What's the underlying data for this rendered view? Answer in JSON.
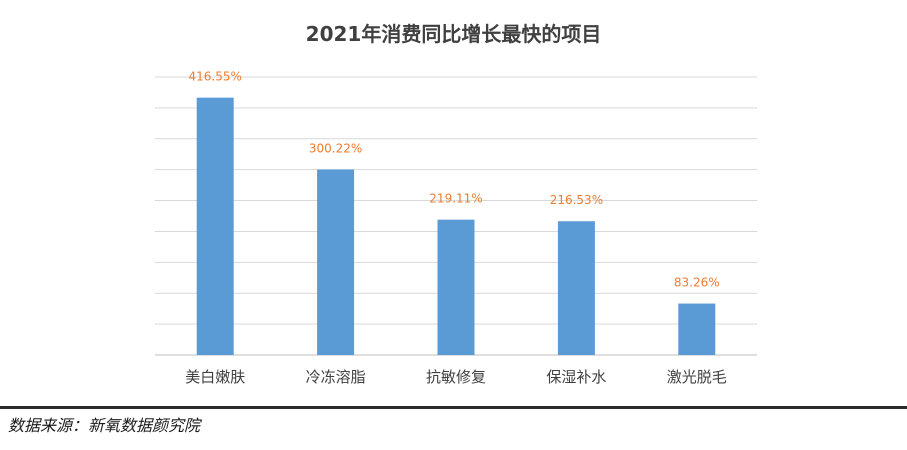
{
  "chart_data": {
    "type": "bar",
    "title": "2021年消费同比增长最快的项目",
    "categories": [
      "美白嫩肤",
      "冷冻溶脂",
      "抗敏修复",
      "保湿补水",
      "激光脱毛"
    ],
    "values": [
      416.55,
      300.22,
      219.11,
      216.53,
      83.26
    ],
    "data_labels": [
      "416.55%",
      "300.22%",
      "219.11%",
      "216.53%",
      "83.26%"
    ],
    "ylim": [
      0,
      450
    ],
    "grid": true,
    "bar_color": "#5b9bd5",
    "label_color": "#ed7d31"
  },
  "footer": {
    "source": "数据来源：新氧数据颜究院"
  }
}
